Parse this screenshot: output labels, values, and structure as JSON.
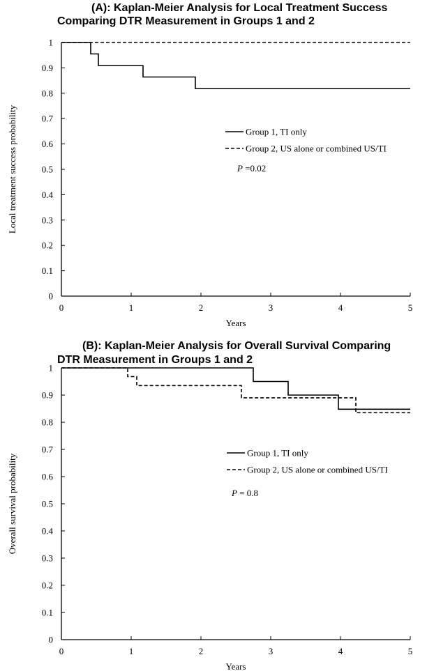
{
  "chart_data": [
    {
      "type": "line",
      "title": "(A): Kaplan-Meier Analysis for Local Treatment Success",
      "subtitle": "Comparing DTR Measurement in Groups 1 and 2",
      "xlabel": "Years",
      "ylabel": "Local treatment success probability",
      "xlim": [
        0,
        5
      ],
      "ylim": [
        0,
        1
      ],
      "x_ticks": [
        "0",
        "1",
        "2",
        "3",
        "4",
        "5"
      ],
      "y_ticks": [
        "0",
        "0.1",
        "0.2",
        "0.3",
        "0.4",
        "0.5",
        "0.6",
        "0.7",
        "0.8",
        "0.9",
        "1"
      ],
      "grid": false,
      "legend_position": "middle-right",
      "series": [
        {
          "name": "Group 1, TI only",
          "style": "solid",
          "x": [
            0,
            0.42,
            0.42,
            0.53,
            0.53,
            1.17,
            1.17,
            1.92,
            1.92,
            5
          ],
          "y": [
            1,
            1,
            0.955,
            0.955,
            0.909,
            0.909,
            0.864,
            0.864,
            0.818,
            0.818
          ]
        },
        {
          "name": "Group 2, US alone or combined US/TI",
          "style": "dashed",
          "x": [
            0,
            5
          ],
          "y": [
            1,
            1
          ]
        }
      ],
      "annotation": {
        "italic": "P",
        "text": " =0.02"
      }
    },
    {
      "type": "line",
      "title": "(B): Kaplan-Meier Analysis for Overall Survival Comparing",
      "subtitle": "DTR Measurement in Groups 1 and 2",
      "xlabel": "Years",
      "ylabel": "Overall survival probability",
      "xlim": [
        0,
        5
      ],
      "ylim": [
        0,
        1
      ],
      "x_ticks": [
        "0",
        "1",
        "2",
        "3",
        "4",
        "5"
      ],
      "y_ticks": [
        "0",
        "0.1",
        "0.2",
        "0.3",
        "0.4",
        "0.5",
        "0.6",
        "0.7",
        "0.8",
        "0.9",
        "1"
      ],
      "grid": false,
      "legend_position": "middle-right",
      "series": [
        {
          "name": "Group 1, TI only",
          "style": "solid",
          "x": [
            0,
            2.75,
            2.75,
            3.25,
            3.25,
            3.97,
            3.97,
            5
          ],
          "y": [
            1,
            1,
            0.95,
            0.95,
            0.9,
            0.9,
            0.848,
            0.848
          ]
        },
        {
          "name": "Group 2, US alone or combined US/TI",
          "style": "dashed",
          "x": [
            0,
            0.95,
            0.95,
            1.08,
            1.08,
            2.58,
            2.58,
            4.22,
            4.22,
            5
          ],
          "y": [
            1,
            1,
            0.968,
            0.968,
            0.935,
            0.935,
            0.89,
            0.89,
            0.835,
            0.835
          ]
        }
      ],
      "annotation": {
        "italic": "P",
        "text": " = 0.8"
      }
    }
  ]
}
